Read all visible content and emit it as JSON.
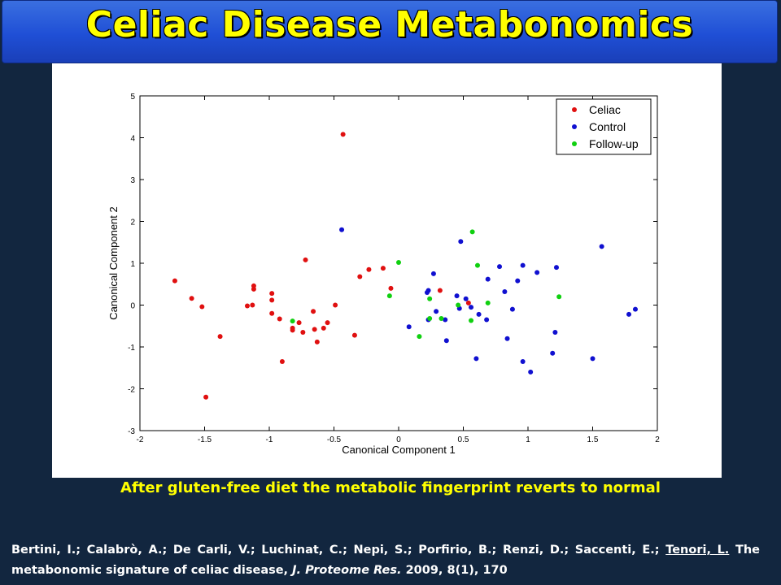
{
  "slide": {
    "title": "Celiac Disease Metabonomics",
    "caption": "After gluten-free diet the metabolic fingerprint reverts to normal",
    "reference": {
      "authors_plain": "Bertini, I.; Calabrò, A.; De Carli, V.; Luchinat, C.; Nepi, S.; Porfirio, B.; Renzi, D.; Saccenti, E.; ",
      "authors_underlined": "Tenori, L.",
      "title_text": " The metabonomic signature of celiac disease, ",
      "journal": "J. Proteome Res.",
      "details": " 2009, 8(1), 170"
    }
  },
  "chart_data": {
    "type": "scatter",
    "xlabel": "Canonical Component 1",
    "ylabel": "Canonical Component 2",
    "xlim": [
      -2,
      2
    ],
    "ylim": [
      -3,
      5
    ],
    "xticks": [
      -2,
      -1.5,
      -1,
      -0.5,
      0,
      0.5,
      1,
      1.5,
      2
    ],
    "yticks": [
      -3,
      -2,
      -1,
      0,
      1,
      2,
      3,
      4,
      5
    ],
    "grid": false,
    "legend_position": "top-right",
    "series": [
      {
        "name": "Celiac",
        "color": "#e01010",
        "points": [
          [
            -1.73,
            0.58
          ],
          [
            -1.6,
            0.16
          ],
          [
            -1.52,
            -0.04
          ],
          [
            -1.38,
            -0.75
          ],
          [
            -1.49,
            -2.2
          ],
          [
            -1.17,
            -0.02
          ],
          [
            -1.12,
            0.38
          ],
          [
            -1.12,
            0.46
          ],
          [
            -1.13,
            0.0
          ],
          [
            -0.98,
            0.28
          ],
          [
            -0.98,
            0.12
          ],
          [
            -0.98,
            -0.2
          ],
          [
            -0.92,
            -0.33
          ],
          [
            -0.9,
            -1.35
          ],
          [
            -0.82,
            -0.55
          ],
          [
            -0.82,
            -0.6
          ],
          [
            -0.77,
            -0.42
          ],
          [
            -0.74,
            -0.65
          ],
          [
            -0.72,
            1.08
          ],
          [
            -0.66,
            -0.15
          ],
          [
            -0.65,
            -0.58
          ],
          [
            -0.63,
            -0.88
          ],
          [
            -0.58,
            -0.55
          ],
          [
            -0.55,
            -0.42
          ],
          [
            -0.49,
            0.0
          ],
          [
            -0.43,
            4.08
          ],
          [
            -0.34,
            -0.72
          ],
          [
            -0.3,
            0.68
          ],
          [
            -0.23,
            0.85
          ],
          [
            -0.12,
            0.88
          ],
          [
            -0.06,
            0.4
          ],
          [
            0.32,
            0.35
          ],
          [
            0.54,
            0.05
          ]
        ]
      },
      {
        "name": "Control",
        "color": "#1010d0",
        "points": [
          [
            -0.44,
            1.8
          ],
          [
            0.08,
            -0.52
          ],
          [
            0.22,
            0.3
          ],
          [
            0.23,
            0.35
          ],
          [
            0.23,
            -0.35
          ],
          [
            0.27,
            0.75
          ],
          [
            0.29,
            -0.15
          ],
          [
            0.36,
            -0.35
          ],
          [
            0.37,
            -0.85
          ],
          [
            0.45,
            0.22
          ],
          [
            0.47,
            -0.08
          ],
          [
            0.48,
            1.52
          ],
          [
            0.52,
            0.15
          ],
          [
            0.56,
            -0.05
          ],
          [
            0.6,
            -1.28
          ],
          [
            0.62,
            -0.22
          ],
          [
            0.69,
            0.62
          ],
          [
            0.78,
            0.92
          ],
          [
            0.82,
            0.32
          ],
          [
            0.84,
            -0.8
          ],
          [
            0.88,
            -0.1
          ],
          [
            0.92,
            0.58
          ],
          [
            0.96,
            0.95
          ],
          [
            0.96,
            -1.35
          ],
          [
            1.02,
            -1.6
          ],
          [
            1.07,
            0.78
          ],
          [
            1.19,
            -1.15
          ],
          [
            1.21,
            -0.65
          ],
          [
            1.22,
            0.9
          ],
          [
            1.5,
            -1.28
          ],
          [
            1.57,
            1.4
          ],
          [
            1.78,
            -0.22
          ],
          [
            1.83,
            -0.1
          ],
          [
            0.68,
            -0.35
          ]
        ]
      },
      {
        "name": "Follow-up",
        "color": "#10d010",
        "points": [
          [
            -0.82,
            -0.38
          ],
          [
            -0.07,
            0.22
          ],
          [
            0.0,
            1.02
          ],
          [
            0.16,
            -0.75
          ],
          [
            0.24,
            0.15
          ],
          [
            0.24,
            -0.32
          ],
          [
            0.33,
            -0.32
          ],
          [
            0.46,
            0.0
          ],
          [
            0.56,
            -0.37
          ],
          [
            0.57,
            1.75
          ],
          [
            0.61,
            0.95
          ],
          [
            0.69,
            0.05
          ],
          [
            1.24,
            0.2
          ]
        ]
      }
    ]
  }
}
